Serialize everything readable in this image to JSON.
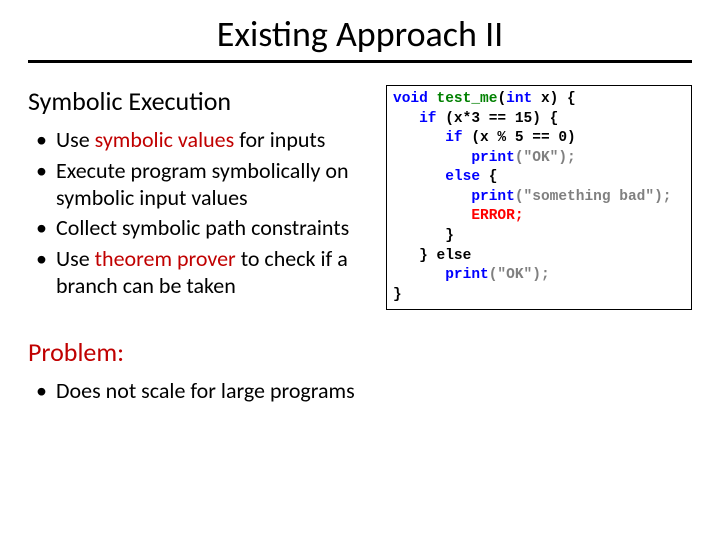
{
  "title": "Existing Approach II",
  "subhead": "Symbolic Execution",
  "bullets": {
    "b1_pre": "Use ",
    "b1_accent": "symbolic values",
    "b1_post": " for inputs",
    "b2": "Execute program symbolically on symbolic input values",
    "b3": "Collect symbolic path constraints",
    "b4_pre": "Use ",
    "b4_accent": "theorem prover",
    "b4_post": " to check if a branch can be taken"
  },
  "code": {
    "kw_void": "void",
    "fn_name": "test_me",
    "kw_int": "int",
    "param": "x) {",
    "kw_if": "if",
    "cond1": "(x*3 == 15) {",
    "cond2": "(x % 5 == 0)",
    "kw_print": "print",
    "str_ok": "(\"OK\");",
    "kw_else": "else",
    "else_open": "{",
    "str_bad": "(\"something bad\");",
    "err": "ERROR;",
    "close_inner": "}",
    "else2": "} else",
    "close_outer": "}"
  },
  "problem": {
    "label": "Problem:",
    "text": "Does not scale for large programs"
  },
  "colors": {
    "accent": "#c00000",
    "keyword": "#0000ff",
    "function": "#008000",
    "string": "#808080",
    "error": "#ff0000",
    "text": "#000000",
    "background": "#ffffff"
  },
  "typography": {
    "title_fontsize": 36,
    "subhead_fontsize": 26,
    "body_fontsize": 22,
    "code_fontsize": 14.5,
    "body_font": "Calibri",
    "code_font": "Courier New"
  }
}
